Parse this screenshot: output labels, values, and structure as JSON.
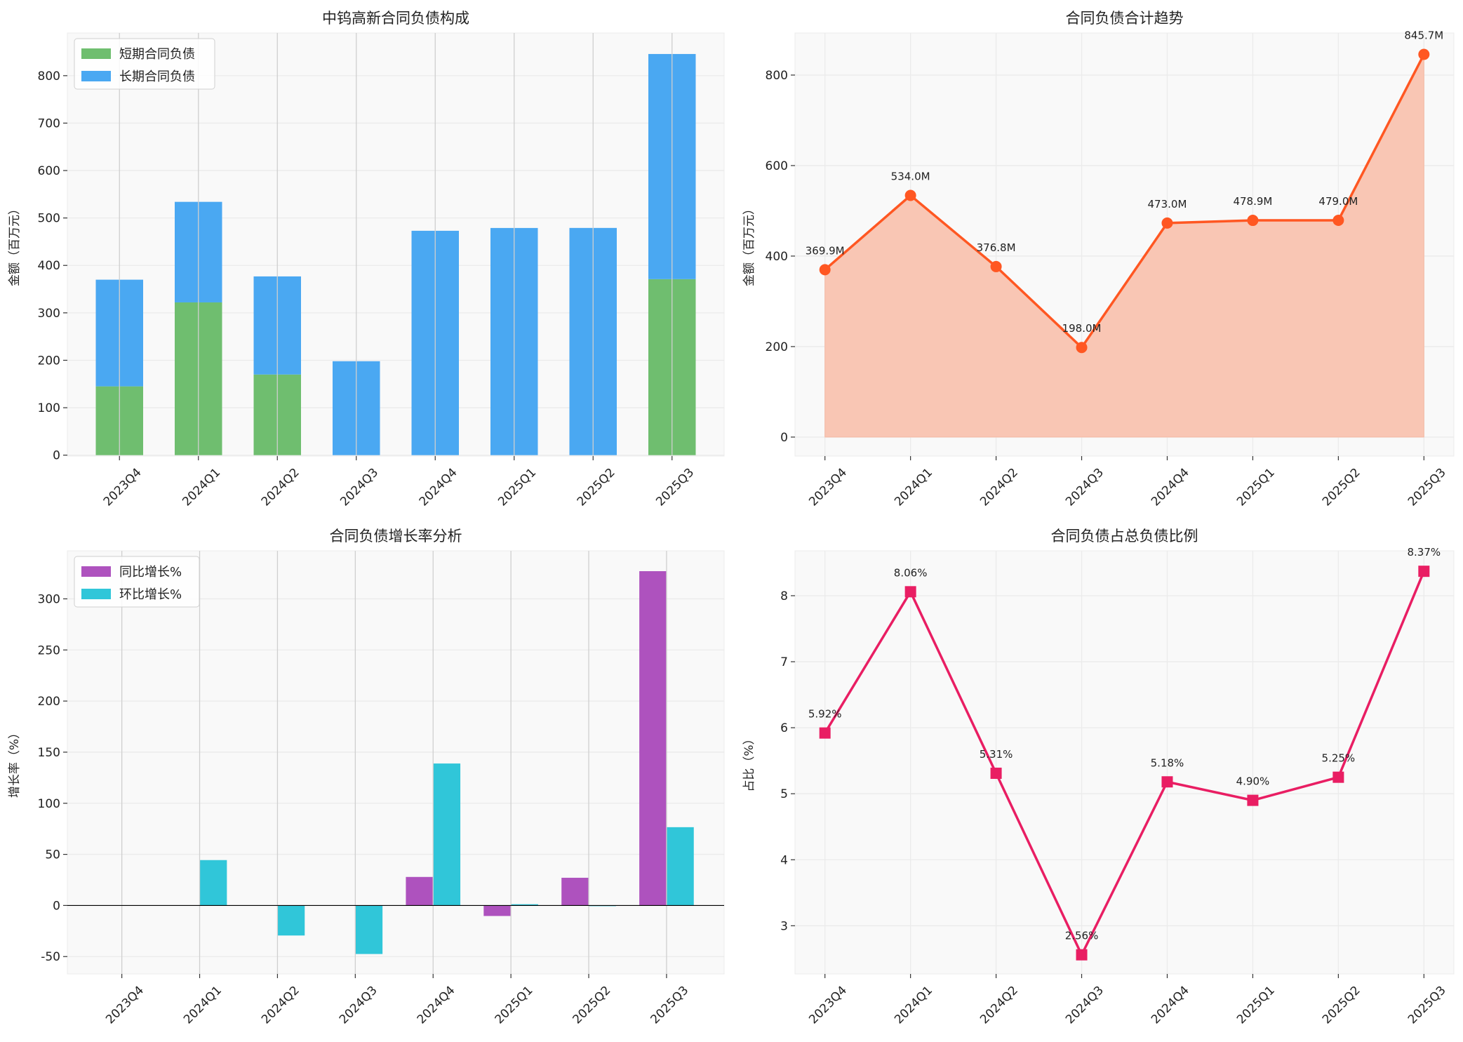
{
  "chart_data": [
    {
      "type": "bar",
      "stacked": true,
      "title": "中钨高新合同负债构成",
      "xlabel": "",
      "ylabel": "金额（百万元）",
      "categories": [
        "2023Q4",
        "2024Q1",
        "2024Q2",
        "2024Q3",
        "2024Q4",
        "2025Q1",
        "2025Q2",
        "2025Q3"
      ],
      "series": [
        {
          "name": "短期合同负债",
          "color": "#6fbe6f",
          "values": [
            145,
            322,
            170,
            0,
            0,
            0,
            0,
            371
          ]
        },
        {
          "name": "长期合同负债",
          "color": "#4aa8f2",
          "values": [
            224.9,
            212.0,
            206.8,
            198.0,
            473.0,
            478.9,
            479.0,
            474.7
          ]
        }
      ],
      "yticks": [
        0,
        100,
        200,
        300,
        400,
        500,
        600,
        700,
        800
      ],
      "ylim": [
        -2,
        890
      ],
      "grid": true,
      "legend": "top-left"
    },
    {
      "type": "area",
      "title": "合同负债合计趋势",
      "xlabel": "",
      "ylabel": "金额（百万元）",
      "categories": [
        "2023Q4",
        "2024Q1",
        "2024Q2",
        "2024Q3",
        "2024Q4",
        "2025Q1",
        "2025Q2",
        "2025Q3"
      ],
      "values": [
        369.9,
        534.0,
        376.8,
        198.0,
        473.0,
        478.9,
        479.0,
        845.7
      ],
      "data_labels": [
        "369.9M",
        "534.0M",
        "376.8M",
        "198.0M",
        "473.0M",
        "478.9M",
        "479.0M",
        "845.7M"
      ],
      "color": "#ff5722",
      "fill_color": "#f9c6b4",
      "marker": "circle",
      "yticks": [
        0,
        200,
        400,
        600,
        800
      ],
      "ylim": [
        -42,
        893
      ],
      "grid": true
    },
    {
      "type": "bar",
      "title": "合同负债增长率分析",
      "xlabel": "",
      "ylabel": "增长率（%）",
      "categories": [
        "2023Q4",
        "2024Q1",
        "2024Q2",
        "2024Q3",
        "2024Q4",
        "2025Q1",
        "2025Q2",
        "2025Q3"
      ],
      "series": [
        {
          "name": "同比增长%",
          "color": "#ae52be",
          "values": [
            null,
            null,
            null,
            null,
            27.9,
            -10.3,
            27.1,
            327.1
          ]
        },
        {
          "name": "环比增长%",
          "color": "#30c6d9",
          "values": [
            null,
            44.4,
            -29.4,
            -47.5,
            138.9,
            1.2,
            0.0,
            76.6
          ]
        }
      ],
      "yticks": [
        -50,
        0,
        50,
        100,
        150,
        200,
        250,
        300
      ],
      "ylim": [
        -67,
        347
      ],
      "grid": true,
      "legend": "top-left"
    },
    {
      "type": "line",
      "title": "合同负债占总负债比例",
      "xlabel": "",
      "ylabel": "占比（%）",
      "categories": [
        "2023Q4",
        "2024Q1",
        "2024Q2",
        "2024Q3",
        "2024Q4",
        "2025Q1",
        "2025Q2",
        "2025Q3"
      ],
      "values": [
        5.92,
        8.06,
        5.31,
        2.56,
        5.18,
        4.9,
        5.25,
        8.37
      ],
      "data_labels": [
        "5.92%",
        "8.06%",
        "5.31%",
        "2.56%",
        "5.18%",
        "4.90%",
        "5.25%",
        "8.37%"
      ],
      "color": "#e91e63",
      "marker": "square",
      "yticks": [
        3,
        4,
        5,
        6,
        7,
        8
      ],
      "ylim": [
        2.27,
        8.68
      ],
      "grid": true
    }
  ]
}
